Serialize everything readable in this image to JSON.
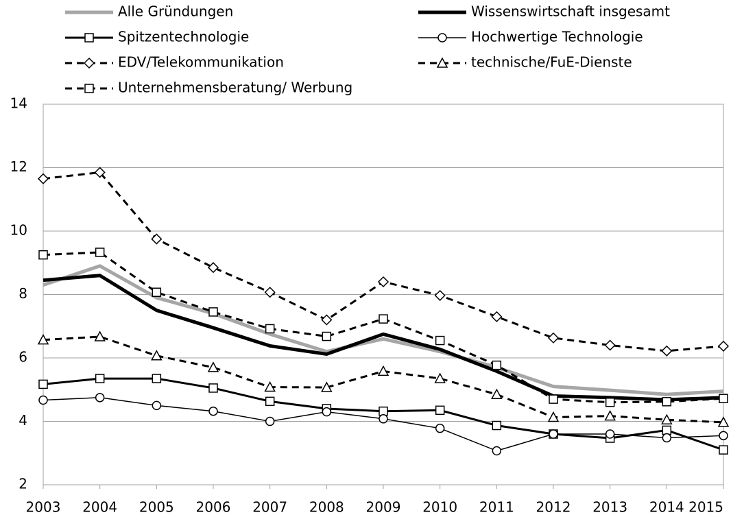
{
  "chart_data": {
    "type": "line",
    "x": [
      2003,
      2004,
      2005,
      2006,
      2007,
      2008,
      2009,
      2010,
      2011,
      2012,
      2013,
      2014,
      2015
    ],
    "ylim": [
      2,
      14
    ],
    "yticks": [
      2,
      4,
      6,
      8,
      10,
      12,
      14
    ],
    "grid": true,
    "series": [
      {
        "name": "Alle Gründungen",
        "color": "#a6a6a6",
        "width": 5,
        "dashed": false,
        "marker": "none",
        "values": [
          8.3,
          8.9,
          7.9,
          7.4,
          6.75,
          6.2,
          6.6,
          6.2,
          5.7,
          5.1,
          4.98,
          4.85,
          4.95
        ]
      },
      {
        "name": "Wissenswirtschaft insgesamt",
        "color": "#000000",
        "width": 5,
        "dashed": false,
        "marker": "none",
        "values": [
          8.45,
          8.6,
          7.5,
          6.95,
          6.38,
          6.12,
          6.75,
          6.27,
          5.58,
          4.8,
          4.75,
          4.68,
          4.75
        ]
      },
      {
        "name": "Spitzentechnologie",
        "color": "#000000",
        "width": 3,
        "dashed": false,
        "marker": "square",
        "values": [
          5.17,
          5.35,
          5.35,
          5.05,
          4.63,
          4.4,
          4.32,
          4.35,
          3.87,
          3.6,
          3.47,
          3.72,
          3.1
        ]
      },
      {
        "name": "Hochwertige Technologie",
        "color": "#000000",
        "width": 1.5,
        "dashed": false,
        "marker": "circle",
        "values": [
          4.67,
          4.75,
          4.5,
          4.32,
          4.0,
          4.3,
          4.08,
          3.78,
          3.07,
          3.6,
          3.6,
          3.48,
          3.55
        ]
      },
      {
        "name": "EDV/Telekommunikation",
        "color": "#000000",
        "width": 3,
        "dashed": true,
        "marker": "diamond",
        "values": [
          11.65,
          11.85,
          9.75,
          8.85,
          8.07,
          7.2,
          8.4,
          7.97,
          7.3,
          6.63,
          6.4,
          6.22,
          6.37
        ]
      },
      {
        "name": "technische/FuE-Dienste",
        "color": "#000000",
        "width": 3,
        "dashed": true,
        "marker": "triangle",
        "values": [
          6.57,
          6.67,
          6.07,
          5.7,
          5.08,
          5.07,
          5.58,
          5.35,
          4.85,
          4.13,
          4.17,
          4.05,
          3.97
        ]
      },
      {
        "name": "Unternehmensberatung/ Werbung",
        "color": "#000000",
        "width": 3,
        "dashed": true,
        "marker": "square",
        "values": [
          9.25,
          9.33,
          8.07,
          7.45,
          6.92,
          6.68,
          7.23,
          6.55,
          5.77,
          4.7,
          4.6,
          4.62,
          4.72
        ]
      }
    ]
  }
}
